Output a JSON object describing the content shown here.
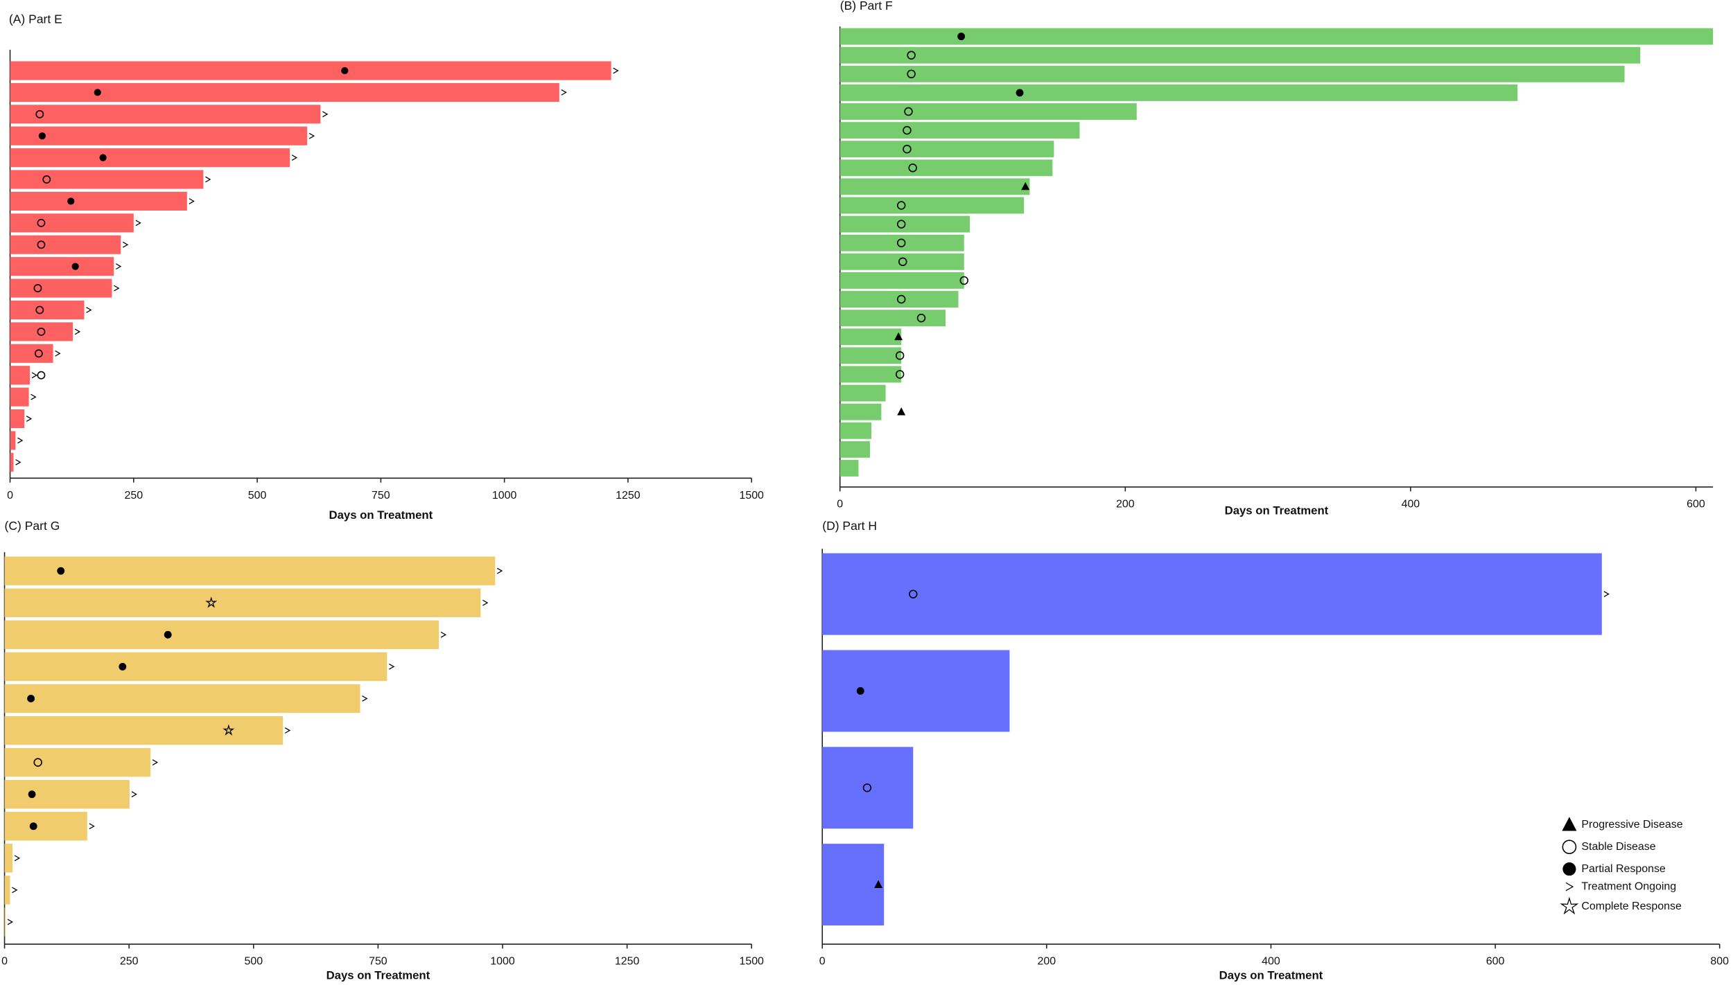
{
  "chart_data": [
    {
      "type": "swimmer",
      "title": "(A) Part E",
      "xlabel": "Days on Treatment",
      "color": "#fe6161",
      "xlim": [
        0,
        1500
      ],
      "xticks": [
        0,
        250,
        500,
        750,
        1000,
        1250,
        1500
      ],
      "values": [
        1216,
        1111,
        628,
        601,
        566,
        391,
        358,
        250,
        224,
        210,
        206,
        150,
        127,
        87,
        40,
        38,
        29,
        11,
        7
      ],
      "response_days": [
        677,
        177,
        60,
        65,
        188,
        74,
        123,
        63,
        63,
        132,
        56,
        60,
        63,
        58,
        63,
        null,
        null,
        null,
        null
      ],
      "response": [
        "Partial Response",
        "Partial Response",
        "Stable Disease",
        "Partial Response",
        "Partial Response",
        "Stable Disease",
        "Partial Response",
        "Stable Disease",
        "Stable Disease",
        "Partial Response",
        "Stable Disease",
        "Stable Disease",
        "Stable Disease",
        "Stable Disease",
        "Stable Disease",
        null,
        null,
        null,
        null
      ],
      "ongoing": [
        true,
        true,
        true,
        true,
        true,
        true,
        true,
        true,
        true,
        true,
        true,
        true,
        true,
        true,
        true,
        true,
        true,
        true,
        true
      ]
    },
    {
      "type": "swimmer",
      "title": "(B) Part F",
      "xlabel": "Days on Treatment",
      "color": "#77cc6e",
      "xlim": [
        0,
        612
      ],
      "xticks": [
        0,
        200,
        400,
        600
      ],
      "values": [
        612,
        561,
        550,
        475,
        208,
        168,
        150,
        149,
        133,
        129,
        91,
        87,
        87,
        87,
        83,
        74,
        43,
        43,
        43,
        32,
        29,
        22,
        21,
        13
      ],
      "response_days": [
        85,
        50,
        50,
        126,
        48,
        47,
        47,
        51,
        130,
        43,
        43,
        43,
        44,
        87,
        43,
        57,
        41,
        42,
        42,
        null,
        43,
        null,
        null,
        null
      ],
      "response": [
        "Partial Response",
        "Stable Disease",
        "Stable Disease",
        "Partial Response",
        "Stable Disease",
        "Stable Disease",
        "Stable Disease",
        "Stable Disease",
        "Progressive Disease",
        "Stable Disease",
        "Stable Disease",
        "Stable Disease",
        "Stable Disease",
        "Stable Disease",
        "Stable Disease",
        "Stable Disease",
        "Progressive Disease",
        "Stable Disease",
        "Stable Disease",
        null,
        "Progressive Disease",
        null,
        null,
        null
      ],
      "ongoing": [
        false,
        false,
        false,
        false,
        false,
        false,
        false,
        false,
        false,
        false,
        false,
        false,
        false,
        false,
        false,
        false,
        false,
        false,
        false,
        false,
        false,
        false,
        false,
        false
      ]
    },
    {
      "type": "swimmer",
      "title": "(C) Part G",
      "xlabel": "Days on Treatment",
      "color": "#f0cc6c",
      "xlim": [
        0,
        1500
      ],
      "xticks": [
        0,
        250,
        500,
        750,
        1000,
        1250,
        1500
      ],
      "values": [
        985,
        956,
        872,
        768,
        714,
        559,
        293,
        251,
        166,
        16,
        11,
        2
      ],
      "response_days": [
        113,
        415,
        328,
        237,
        53,
        450,
        67,
        55,
        58,
        null,
        null,
        null
      ],
      "response": [
        "Partial Response",
        "Complete Response",
        "Partial Response",
        "Partial Response",
        "Partial Response",
        "Complete Response",
        "Stable Disease",
        "Partial Response",
        "Partial Response",
        null,
        null,
        null
      ],
      "ongoing": [
        true,
        true,
        true,
        true,
        true,
        true,
        true,
        true,
        true,
        true,
        true,
        true
      ]
    },
    {
      "type": "swimmer",
      "title": "(D) Part H",
      "xlabel": "Days on Treatment",
      "color": "#6670fd",
      "xlim": [
        0,
        800
      ],
      "xticks": [
        0,
        200,
        400,
        600,
        800
      ],
      "values": [
        695,
        167,
        81,
        55
      ],
      "response_days": [
        81,
        34,
        40,
        50
      ],
      "response": [
        "Stable Disease",
        "Partial Response",
        "Stable Disease",
        "Progressive Disease"
      ],
      "ongoing": [
        true,
        false,
        false,
        false
      ]
    }
  ],
  "legend": [
    {
      "name": "Progressive Disease",
      "symbol": "triangle"
    },
    {
      "name": "Stable Disease",
      "symbol": "open-circle"
    },
    {
      "name": "Partial Response",
      "symbol": "filled-circle"
    },
    {
      "name": "Treatment Ongoing",
      "symbol": "chevron"
    },
    {
      "name": "Complete Response",
      "symbol": "star"
    }
  ]
}
